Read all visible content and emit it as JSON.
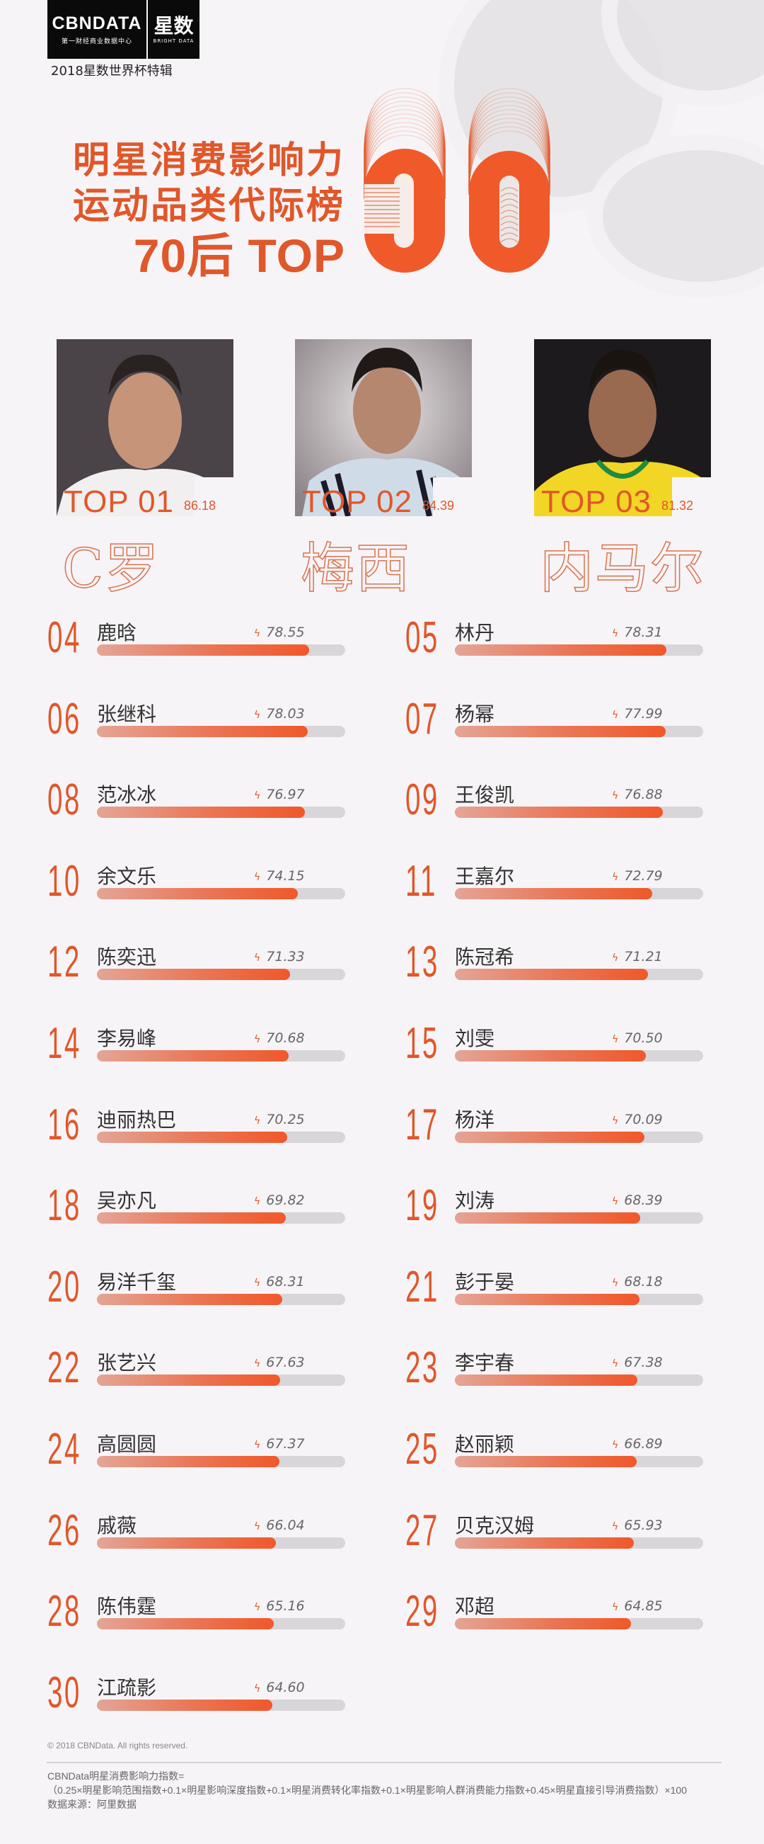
{
  "header": {
    "logo_brand": "CBNDATA",
    "logo_brand_sub": "第一财经商业数据中心",
    "logo_star": "星数",
    "logo_star_sub": "BRIGHT DATA",
    "edition": "2018星数世界杯特辑"
  },
  "title": {
    "line1": "明星消费影响力",
    "line2": "运动品类代际榜",
    "line3": "70后 TOP",
    "big_number": "30"
  },
  "colors": {
    "accent": "#e0572a",
    "bar_start": "#e4a596",
    "bar_end": "#f0582a",
    "track": "#d8d6d9",
    "background": "#f7f4f7"
  },
  "top3": [
    {
      "rank_label": "TOP 01",
      "score": "86.18",
      "name": "C罗"
    },
    {
      "rank_label": "TOP 02",
      "score": "84.39",
      "name": "梅西"
    },
    {
      "rank_label": "TOP 03",
      "score": "81.32",
      "name": "内马尔"
    }
  ],
  "ranking": [
    {
      "rank": "04",
      "name": "鹿晗",
      "score": "78.55"
    },
    {
      "rank": "05",
      "name": "林丹",
      "score": "78.31"
    },
    {
      "rank": "06",
      "name": "张继科",
      "score": "78.03"
    },
    {
      "rank": "07",
      "name": "杨幂",
      "score": "77.99"
    },
    {
      "rank": "08",
      "name": "范冰冰",
      "score": "76.97"
    },
    {
      "rank": "09",
      "name": "王俊凯",
      "score": "76.88"
    },
    {
      "rank": "10",
      "name": "余文乐",
      "score": "74.15"
    },
    {
      "rank": "11",
      "name": "王嘉尔",
      "score": "72.79"
    },
    {
      "rank": "12",
      "name": "陈奕迅",
      "score": "71.33"
    },
    {
      "rank": "13",
      "name": "陈冠希",
      "score": "71.21"
    },
    {
      "rank": "14",
      "name": "李易峰",
      "score": "70.68"
    },
    {
      "rank": "15",
      "name": "刘雯",
      "score": "70.50"
    },
    {
      "rank": "16",
      "name": "迪丽热巴",
      "score": "70.25"
    },
    {
      "rank": "17",
      "name": "杨洋",
      "score": "70.09"
    },
    {
      "rank": "18",
      "name": "吴亦凡",
      "score": "69.82"
    },
    {
      "rank": "19",
      "name": "刘涛",
      "score": "68.39"
    },
    {
      "rank": "20",
      "name": "易洋千玺",
      "score": "68.31"
    },
    {
      "rank": "21",
      "name": "彭于晏",
      "score": "68.18"
    },
    {
      "rank": "22",
      "name": "张艺兴",
      "score": "67.63"
    },
    {
      "rank": "23",
      "name": "李宇春",
      "score": "67.38"
    },
    {
      "rank": "24",
      "name": "高圆圆",
      "score": "67.37"
    },
    {
      "rank": "25",
      "name": "赵丽颖",
      "score": "66.89"
    },
    {
      "rank": "26",
      "name": "戚薇",
      "score": "66.04"
    },
    {
      "rank": "27",
      "name": "贝克汉姆",
      "score": "65.93"
    },
    {
      "rank": "28",
      "name": "陈伟霆",
      "score": "65.16"
    },
    {
      "rank": "29",
      "name": "邓超",
      "score": "64.85"
    },
    {
      "rank": "30",
      "name": "江疏影",
      "score": "64.60"
    }
  ],
  "footer": {
    "copyright": "© 2018 CBNData. All rights reserved.",
    "formula_title": "CBNData明星消费影响力指数=",
    "formula": "（0.25×明星影响范围指数+0.1×明星影响深度指数+0.1×明星消费转化率指数+0.1×明星影响人群消费能力指数+0.45×明星直接引导消费指数）×100",
    "source": "数据来源：阿里数据"
  },
  "chart_data": {
    "type": "bar",
    "title": "明星消费影响力 运动品类代际榜 70后 TOP 30",
    "xlabel": "",
    "ylabel": "明星消费影响力指数",
    "orientation": "horizontal",
    "categories": [
      "C罗",
      "梅西",
      "内马尔",
      "鹿晗",
      "林丹",
      "张继科",
      "杨幂",
      "范冰冰",
      "王俊凯",
      "余文乐",
      "王嘉尔",
      "陈奕迅",
      "陈冠希",
      "李易峰",
      "刘雯",
      "迪丽热巴",
      "杨洋",
      "吴亦凡",
      "刘涛",
      "易洋千玺",
      "彭于晏",
      "张艺兴",
      "李宇春",
      "高圆圆",
      "赵丽颖",
      "戚薇",
      "贝克汉姆",
      "陈伟霆",
      "邓超",
      "江疏影"
    ],
    "values": [
      86.18,
      84.39,
      81.32,
      78.55,
      78.31,
      78.03,
      77.99,
      76.97,
      76.88,
      74.15,
      72.79,
      71.33,
      71.21,
      70.68,
      70.5,
      70.25,
      70.09,
      69.82,
      68.39,
      68.31,
      68.18,
      67.63,
      67.38,
      67.37,
      66.89,
      66.04,
      65.93,
      65.16,
      64.85,
      64.6
    ],
    "ranks": [
      1,
      2,
      3,
      4,
      5,
      6,
      7,
      8,
      9,
      10,
      11,
      12,
      13,
      14,
      15,
      16,
      17,
      18,
      19,
      20,
      21,
      22,
      23,
      24,
      25,
      26,
      27,
      28,
      29,
      30
    ],
    "grid": false,
    "legend": "none"
  }
}
